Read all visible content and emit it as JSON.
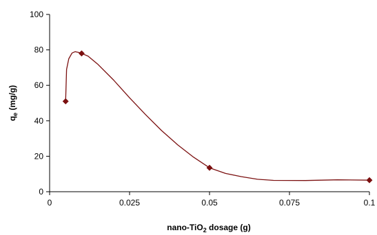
{
  "chart_data": {
    "type": "line",
    "title": "",
    "xlabel": {
      "prefix": "nano-TiO",
      "subscript": "2",
      "suffix": " dosage (g)"
    },
    "ylabel": {
      "prefix": "q",
      "subscript": "e",
      "suffix": " (mg/g)"
    },
    "xlim": [
      0,
      0.1
    ],
    "ylim": [
      0,
      100
    ],
    "x_ticks": [
      {
        "value": 0,
        "label": "0"
      },
      {
        "value": 0.025,
        "label": "0.025"
      },
      {
        "value": 0.05,
        "label": "0.05"
      },
      {
        "value": 0.075,
        "label": "0.075"
      },
      {
        "value": 0.1,
        "label": "0.1"
      }
    ],
    "y_ticks": [
      {
        "value": 0,
        "label": "0"
      },
      {
        "value": 20,
        "label": "20"
      },
      {
        "value": 40,
        "label": "40"
      },
      {
        "value": 60,
        "label": "60"
      },
      {
        "value": 80,
        "label": "80"
      },
      {
        "value": 100,
        "label": "100"
      }
    ],
    "grid": false,
    "legend": "none",
    "series": [
      {
        "points": [
          {
            "x": 0.005,
            "y": 51
          },
          {
            "x": 0.01,
            "y": 78
          },
          {
            "x": 0.05,
            "y": 13.5
          },
          {
            "x": 0.1,
            "y": 6.5
          }
        ]
      }
    ],
    "fitted_curve": [
      {
        "x": 0.005,
        "y": 51
      },
      {
        "x": 0.0053,
        "y": 69
      },
      {
        "x": 0.006,
        "y": 75
      },
      {
        "x": 0.007,
        "y": 78.2
      },
      {
        "x": 0.008,
        "y": 79
      },
      {
        "x": 0.009,
        "y": 78.6
      },
      {
        "x": 0.01,
        "y": 78
      },
      {
        "x": 0.012,
        "y": 76.5
      },
      {
        "x": 0.015,
        "y": 72
      },
      {
        "x": 0.02,
        "y": 63
      },
      {
        "x": 0.025,
        "y": 53
      },
      {
        "x": 0.03,
        "y": 43.5
      },
      {
        "x": 0.035,
        "y": 34.5
      },
      {
        "x": 0.04,
        "y": 26.5
      },
      {
        "x": 0.045,
        "y": 19.5
      },
      {
        "x": 0.05,
        "y": 13.5
      },
      {
        "x": 0.055,
        "y": 10.3
      },
      {
        "x": 0.06,
        "y": 8.5
      },
      {
        "x": 0.065,
        "y": 7
      },
      {
        "x": 0.07,
        "y": 6.4
      },
      {
        "x": 0.08,
        "y": 6.3
      },
      {
        "x": 0.09,
        "y": 6.7
      },
      {
        "x": 0.1,
        "y": 6.5
      }
    ],
    "colors": {
      "line": "#7b1010",
      "marker": "#7b1010",
      "axis": "#000000"
    }
  }
}
